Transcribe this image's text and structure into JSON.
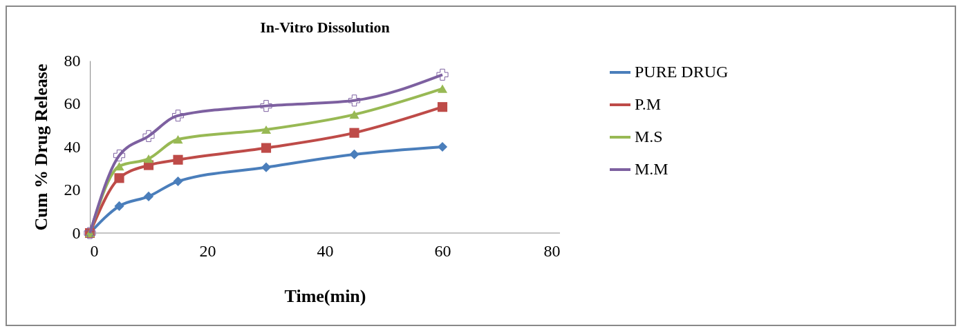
{
  "chart_data": {
    "type": "line",
    "title": "In-Vitro Dissolution",
    "xlabel": "Time(min)",
    "ylabel": "Cum % Drug Release",
    "xlim": [
      0,
      80
    ],
    "xticks": [
      0,
      20,
      40,
      60,
      80
    ],
    "ylim": [
      0,
      80
    ],
    "yticks": [
      0,
      20,
      40,
      60,
      80
    ],
    "grid": false,
    "legend": "right",
    "series": [
      {
        "name": "PURE DRUG",
        "color": "#4a7ebb",
        "marker": "diamond",
        "x": [
          0,
          5,
          10,
          15,
          30,
          45,
          60
        ],
        "values": [
          0,
          12.5,
          17,
          24,
          30.5,
          36.5,
          40
        ]
      },
      {
        "name": "P.M",
        "color": "#be4b48",
        "marker": "square",
        "x": [
          0,
          5,
          10,
          15,
          30,
          45,
          60
        ],
        "values": [
          0,
          25.5,
          31.5,
          34,
          39.5,
          46.5,
          58.5
        ]
      },
      {
        "name": "M.S",
        "color": "#98b954",
        "marker": "triangle",
        "x": [
          0,
          5,
          10,
          15,
          30,
          45,
          60
        ],
        "values": [
          0,
          31,
          34.5,
          43.5,
          48,
          55,
          67
        ]
      },
      {
        "name": "M.M",
        "color": "#7d60a0",
        "marker": "cross",
        "x": [
          0,
          5,
          10,
          15,
          30,
          45,
          60
        ],
        "values": [
          0,
          36,
          45,
          54.5,
          59,
          61.5,
          73.5
        ]
      }
    ]
  }
}
